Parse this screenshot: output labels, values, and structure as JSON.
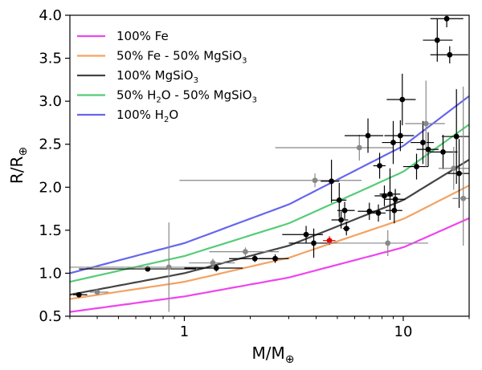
{
  "chart_data": {
    "type": "scatter",
    "xlabel_main": "M/M",
    "xlabel_sub": "⊕",
    "ylabel_main": "R/R",
    "ylabel_sub": "⊕",
    "xscale": "log",
    "xlim": [
      0.3,
      20
    ],
    "ylim": [
      0.5,
      4.0
    ],
    "xticks": [
      {
        "value": 1,
        "label": "1"
      },
      {
        "value": 10,
        "label": "10"
      }
    ],
    "yticks": [
      {
        "value": 0.5,
        "label": "0.5"
      },
      {
        "value": 1.0,
        "label": "1.0"
      },
      {
        "value": 1.5,
        "label": "1.5"
      },
      {
        "value": 2.0,
        "label": "2.0"
      },
      {
        "value": 2.5,
        "label": "2.5"
      },
      {
        "value": 3.0,
        "label": "3.0"
      },
      {
        "value": 3.5,
        "label": "3.5"
      },
      {
        "value": 4.0,
        "label": "4.0"
      }
    ],
    "legend_position": "top-left",
    "models": [
      {
        "name": "100% Fe",
        "color": "#ee44ee",
        "sub": "",
        "x": [
          0.3,
          1,
          3,
          10,
          20
        ],
        "y": [
          0.55,
          0.73,
          0.95,
          1.3,
          1.64
        ]
      },
      {
        "name": "50% Fe - 50% MgSiO",
        "sub": "3",
        "color": "#f4a261",
        "x": [
          0.3,
          1,
          3,
          10,
          20
        ],
        "y": [
          0.7,
          0.9,
          1.18,
          1.63,
          2.02
        ]
      },
      {
        "name": "100% MgSiO",
        "sub": "3",
        "color": "#444444",
        "x": [
          0.3,
          1,
          3,
          10,
          20
        ],
        "y": [
          0.75,
          1.0,
          1.32,
          1.85,
          2.32
        ]
      },
      {
        "name": "50% H",
        "sub": "2",
        "tail": "O - 50% MgSiO",
        "sub2": "3",
        "color": "#55cc77",
        "x": [
          0.3,
          1,
          3,
          10,
          20
        ],
        "y": [
          0.9,
          1.2,
          1.58,
          2.18,
          2.73
        ]
      },
      {
        "name": "100% H",
        "sub": "2",
        "tail": "O",
        "sub2": "",
        "color": "#6666ee",
        "x": [
          0.3,
          1,
          3,
          10,
          20
        ],
        "y": [
          1.0,
          1.35,
          1.8,
          2.48,
          3.06
        ]
      }
    ],
    "planets": [
      {
        "x": 0.33,
        "y": 0.75,
        "xerr": [
          0.02,
          0.03
        ],
        "yerr": [
          0.03,
          0.03
        ],
        "color": "#000000"
      },
      {
        "x": 0.4,
        "y": 0.78,
        "xerr": [
          0.03,
          0.05
        ],
        "yerr": [
          0.02,
          0.02
        ],
        "color": "#888888"
      },
      {
        "x": 0.68,
        "y": 1.05,
        "xerr": [
          0.35,
          0.45
        ],
        "yerr": [
          0.03,
          0.03
        ],
        "color": "#000000"
      },
      {
        "x": 0.85,
        "y": 1.07,
        "xerr": [
          0.55,
          0.4
        ],
        "yerr": [
          0.52,
          0.52
        ],
        "color": "#888888"
      },
      {
        "x": 1.35,
        "y": 1.12,
        "xerr": [
          0.3,
          0.35
        ],
        "yerr": [
          0.05,
          0.05
        ],
        "color": "#888888"
      },
      {
        "x": 1.4,
        "y": 1.06,
        "xerr": [
          0.4,
          0.45
        ],
        "yerr": [
          0.04,
          0.04
        ],
        "color": "#000000"
      },
      {
        "x": 1.9,
        "y": 1.25,
        "xerr": [
          0.6,
          0.8
        ],
        "yerr": [
          0.05,
          0.05
        ],
        "color": "#888888"
      },
      {
        "x": 2.1,
        "y": 1.17,
        "xerr": [
          0.5,
          0.6
        ],
        "yerr": [
          0.04,
          0.04
        ],
        "color": "#000000"
      },
      {
        "x": 2.6,
        "y": 1.17,
        "xerr": [
          0.4,
          0.4
        ],
        "yerr": [
          0.05,
          0.05
        ],
        "color": "#000000"
      },
      {
        "x": 3.6,
        "y": 1.45,
        "xerr": [
          0.8,
          0.7
        ],
        "yerr": [
          0.1,
          0.1
        ],
        "color": "#000000"
      },
      {
        "x": 3.9,
        "y": 1.35,
        "xerr": [
          0.9,
          1.1
        ],
        "yerr": [
          0.17,
          0.17
        ],
        "color": "#000000"
      },
      {
        "x": 3.95,
        "y": 2.08,
        "xerr": [
          3.0,
          2.5
        ],
        "yerr": [
          0.08,
          0.08
        ],
        "color": "#888888"
      },
      {
        "x": 4.6,
        "y": 1.38,
        "xerr": [
          0.3,
          0.3
        ],
        "yerr": [
          0.05,
          0.05
        ],
        "color": "#dd0000"
      },
      {
        "x": 4.7,
        "y": 2.07,
        "xerr": [
          0.5,
          0.4
        ],
        "yerr": [
          0.25,
          0.25
        ],
        "color": "#000000"
      },
      {
        "x": 5.1,
        "y": 1.85,
        "xerr": [
          0.4,
          0.4
        ],
        "yerr": [
          0.2,
          0.2
        ],
        "color": "#000000"
      },
      {
        "x": 5.2,
        "y": 1.62,
        "xerr": [
          0.5,
          0.4
        ],
        "yerr": [
          0.1,
          0.1
        ],
        "color": "#000000"
      },
      {
        "x": 5.4,
        "y": 1.73,
        "xerr": [
          0.4,
          0.6
        ],
        "yerr": [
          0.1,
          0.1
        ],
        "color": "#000000"
      },
      {
        "x": 5.5,
        "y": 1.52,
        "xerr": [
          0.2,
          0.2
        ],
        "yerr": [
          0.08,
          0.08
        ],
        "color": "#000000"
      },
      {
        "x": 6.3,
        "y": 2.46,
        "xerr": [
          3.7,
          2.7
        ],
        "yerr": [
          0.15,
          0.15
        ],
        "color": "#888888"
      },
      {
        "x": 6.9,
        "y": 2.6,
        "xerr": [
          1.5,
          1.2
        ],
        "yerr": [
          0.2,
          0.2
        ],
        "color": "#000000"
      },
      {
        "x": 7.0,
        "y": 1.72,
        "xerr": [
          0.8,
          0.8
        ],
        "yerr": [
          0.1,
          0.1
        ],
        "color": "#000000"
      },
      {
        "x": 7.8,
        "y": 2.25,
        "xerr": [
          0.5,
          0.5
        ],
        "yerr": [
          0.15,
          0.15
        ],
        "color": "#000000"
      },
      {
        "x": 7.7,
        "y": 1.7,
        "xerr": [
          0.6,
          0.6
        ],
        "yerr": [
          0.1,
          0.1
        ],
        "color": "#000000"
      },
      {
        "x": 8.2,
        "y": 1.9,
        "xerr": [
          0.8,
          0.8
        ],
        "yerr": [
          0.12,
          0.12
        ],
        "color": "#000000"
      },
      {
        "x": 8.5,
        "y": 1.35,
        "xerr": [
          4.0,
          4.5
        ],
        "yerr": [
          0.15,
          0.15
        ],
        "color": "#888888"
      },
      {
        "x": 8.7,
        "y": 1.92,
        "xerr": [
          0.9,
          1.0
        ],
        "yerr": [
          0.3,
          0.3
        ],
        "color": "#000000"
      },
      {
        "x": 9.0,
        "y": 2.52,
        "xerr": [
          1.0,
          1.0
        ],
        "yerr": [
          0.25,
          0.25
        ],
        "color": "#000000"
      },
      {
        "x": 9.1,
        "y": 1.73,
        "xerr": [
          0.8,
          0.8
        ],
        "yerr": [
          0.15,
          0.15
        ],
        "color": "#000000"
      },
      {
        "x": 9.2,
        "y": 1.86,
        "xerr": [
          1.0,
          1.0
        ],
        "yerr": [
          0.12,
          0.12
        ],
        "color": "#000000"
      },
      {
        "x": 9.7,
        "y": 2.6,
        "xerr": [
          1.5,
          1.5
        ],
        "yerr": [
          0.18,
          0.18
        ],
        "color": "#000000"
      },
      {
        "x": 9.9,
        "y": 3.02,
        "xerr": [
          1.5,
          1.5
        ],
        "yerr": [
          0.3,
          0.3
        ],
        "color": "#000000"
      },
      {
        "x": 11.5,
        "y": 2.24,
        "xerr": [
          1.5,
          1.5
        ],
        "yerr": [
          0.15,
          0.15
        ],
        "color": "#000000"
      },
      {
        "x": 12.3,
        "y": 2.52,
        "xerr": [
          1.5,
          1.5
        ],
        "yerr": [
          0.25,
          0.25
        ],
        "color": "#000000"
      },
      {
        "x": 12.7,
        "y": 2.74,
        "xerr": [
          2.5,
          2.8
        ],
        "yerr": [
          0.5,
          0.5
        ],
        "color": "#888888"
      },
      {
        "x": 13.0,
        "y": 2.44,
        "xerr": [
          1.5,
          1.5
        ],
        "yerr": [
          0.2,
          0.2
        ],
        "color": "#000000"
      },
      {
        "x": 14.3,
        "y": 3.71,
        "xerr": [
          2.0,
          2.5
        ],
        "yerr": [
          0.25,
          0.25
        ],
        "color": "#000000"
      },
      {
        "x": 15.2,
        "y": 2.41,
        "xerr": [
          2.0,
          2.5
        ],
        "yerr": [
          0.2,
          0.2
        ],
        "color": "#000000"
      },
      {
        "x": 15.8,
        "y": 3.96,
        "xerr": [
          2.5,
          3.0
        ],
        "yerr": [
          0.1,
          0.1
        ],
        "color": "#000000"
      },
      {
        "x": 16.3,
        "y": 3.54,
        "xerr": [
          3.0,
          3.5
        ],
        "yerr": [
          0.1,
          0.1
        ],
        "color": "#000000"
      },
      {
        "x": 17.0,
        "y": 2.22,
        "xerr": [
          2.5,
          3.0
        ],
        "yerr": [
          0.25,
          0.25
        ],
        "color": "#888888"
      },
      {
        "x": 17.5,
        "y": 2.59,
        "xerr": [
          2.5,
          2.5
        ],
        "yerr": [
          0.55,
          0.55
        ],
        "color": "#000000"
      },
      {
        "x": 18.0,
        "y": 2.16,
        "xerr": [
          2.0,
          2.0
        ],
        "yerr": [
          0.4,
          0.4
        ],
        "color": "#000000"
      },
      {
        "x": 18.8,
        "y": 1.87,
        "xerr": [
          2.0,
          2.0
        ],
        "yerr": [
          0.55,
          1.3
        ],
        "color": "#888888"
      }
    ]
  }
}
